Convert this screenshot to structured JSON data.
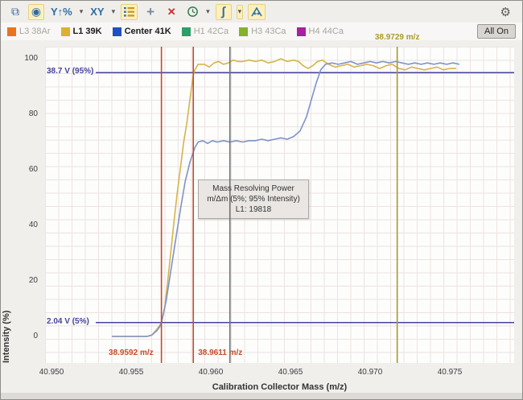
{
  "icons": {
    "copy": "⧉",
    "target": "◉",
    "caret": "▾",
    "crosshair": "+",
    "clear": "✕",
    "integral": "∫",
    "gear": "⚙"
  },
  "toolbar": {
    "y_scale_label": "Y↑%",
    "xy_label": "XY"
  },
  "legend": {
    "items": [
      {
        "label": "L3 38Ar",
        "color": "#e8741f",
        "active": false
      },
      {
        "label": "L1 39K",
        "color": "#ddb032",
        "active": true
      },
      {
        "label": "Center 41K",
        "color": "#2050c0",
        "active": true
      },
      {
        "label": "H1 42Ca",
        "color": "#2e9e68",
        "active": false
      },
      {
        "label": "H3 43Ca",
        "color": "#85b22c",
        "active": false
      },
      {
        "label": "H4 44Ca",
        "color": "#a8219e",
        "active": false
      }
    ],
    "all_on_label": "All On"
  },
  "tooltip": {
    "line1": "Mass Resolving Power",
    "line2": "m/Δm (5%; 95% Intensity)",
    "line3": "L1: 19818"
  },
  "chart_data": {
    "type": "line",
    "xlabel": "Calibration Collector Mass (m/z)",
    "ylabel": "Intensity (%)",
    "x_ticks": [
      40.95,
      40.955,
      40.96,
      40.965,
      40.97,
      40.975
    ],
    "y_ticks": [
      0,
      20,
      40,
      60,
      80,
      100
    ],
    "xlim": [
      40.9496,
      40.979
    ],
    "ylim": [
      -10,
      113
    ],
    "grid": true,
    "legend_position": "top",
    "series": [
      {
        "name": "L1 39K",
        "color": "#d6b34c",
        "points": [
          [
            40.9538,
            0
          ],
          [
            40.955,
            0
          ],
          [
            40.956,
            0
          ],
          [
            40.9563,
            0.5
          ],
          [
            40.9566,
            2.5
          ],
          [
            40.9568,
            4
          ],
          [
            40.9569,
            5
          ],
          [
            40.9571,
            10
          ],
          [
            40.9573,
            20
          ],
          [
            40.9575,
            31
          ],
          [
            40.9577,
            42
          ],
          [
            40.9579,
            52
          ],
          [
            40.9581,
            61
          ],
          [
            40.9583,
            70
          ],
          [
            40.9585,
            77
          ],
          [
            40.9587,
            86
          ],
          [
            40.9589,
            94
          ],
          [
            40.959,
            96
          ],
          [
            40.9592,
            98
          ],
          [
            40.9596,
            98
          ],
          [
            40.9599,
            97
          ],
          [
            40.9602,
            98.5
          ],
          [
            40.9605,
            99
          ],
          [
            40.9608,
            98
          ],
          [
            40.9611,
            98.5
          ],
          [
            40.9614,
            99.5
          ],
          [
            40.9617,
            99
          ],
          [
            40.962,
            99
          ],
          [
            40.9624,
            99.5
          ],
          [
            40.9628,
            99
          ],
          [
            40.9632,
            99.5
          ],
          [
            40.9636,
            98.5
          ],
          [
            40.964,
            99
          ],
          [
            40.9644,
            100
          ],
          [
            40.9648,
            99
          ],
          [
            40.9652,
            99.5
          ],
          [
            40.9655,
            99
          ],
          [
            40.9658,
            97.5
          ],
          [
            40.9661,
            96.5
          ],
          [
            40.9664,
            97.5
          ],
          [
            40.9667,
            99
          ],
          [
            40.967,
            99.5
          ],
          [
            40.9674,
            98
          ],
          [
            40.9678,
            97
          ],
          [
            40.9682,
            97.5
          ],
          [
            40.9686,
            98
          ],
          [
            40.969,
            97
          ],
          [
            40.9694,
            97.5
          ],
          [
            40.9698,
            98
          ],
          [
            40.9702,
            97.5
          ],
          [
            40.9706,
            96.5
          ],
          [
            40.971,
            97.5
          ],
          [
            40.9714,
            98
          ],
          [
            40.9718,
            96.5
          ],
          [
            40.9722,
            96
          ],
          [
            40.9726,
            97
          ],
          [
            40.973,
            96.5
          ],
          [
            40.9734,
            96
          ],
          [
            40.9738,
            96.5
          ],
          [
            40.9742,
            97
          ],
          [
            40.9746,
            96
          ],
          [
            40.975,
            96.5
          ],
          [
            40.9754,
            96.5
          ]
        ]
      },
      {
        "name": "Center 41K",
        "color": "#7d93c8",
        "points": [
          [
            40.9538,
            0
          ],
          [
            40.955,
            0
          ],
          [
            40.956,
            0
          ],
          [
            40.9563,
            0.5
          ],
          [
            40.9566,
            2
          ],
          [
            40.9568,
            3.5
          ],
          [
            40.9569,
            5
          ],
          [
            40.9572,
            13
          ],
          [
            40.9575,
            24
          ],
          [
            40.9578,
            35
          ],
          [
            40.9581,
            46
          ],
          [
            40.9584,
            56
          ],
          [
            40.9587,
            63
          ],
          [
            40.959,
            68
          ],
          [
            40.9592,
            70
          ],
          [
            40.9595,
            70.5
          ],
          [
            40.9598,
            69.5
          ],
          [
            40.9601,
            70.5
          ],
          [
            40.9604,
            70
          ],
          [
            40.9608,
            70.5
          ],
          [
            40.9612,
            70
          ],
          [
            40.9616,
            70.5
          ],
          [
            40.962,
            70
          ],
          [
            40.9624,
            70.5
          ],
          [
            40.9628,
            70.5
          ],
          [
            40.9632,
            71
          ],
          [
            40.9636,
            70.5
          ],
          [
            40.964,
            71
          ],
          [
            40.9644,
            71.5
          ],
          [
            40.9648,
            71
          ],
          [
            40.9652,
            72
          ],
          [
            40.9656,
            74
          ],
          [
            40.966,
            79
          ],
          [
            40.9663,
            85
          ],
          [
            40.9666,
            91
          ],
          [
            40.9669,
            96
          ],
          [
            40.9672,
            98
          ],
          [
            40.9676,
            98.5
          ],
          [
            40.968,
            98
          ],
          [
            40.9684,
            98.5
          ],
          [
            40.9688,
            99
          ],
          [
            40.9692,
            98
          ],
          [
            40.9696,
            98.5
          ],
          [
            40.97,
            99
          ],
          [
            40.9704,
            98.5
          ],
          [
            40.9708,
            99
          ],
          [
            40.9712,
            98.5
          ],
          [
            40.9716,
            99
          ],
          [
            40.972,
            98.5
          ],
          [
            40.9724,
            98
          ],
          [
            40.9728,
            98.5
          ],
          [
            40.9732,
            98
          ],
          [
            40.9736,
            98.5
          ],
          [
            40.974,
            98
          ],
          [
            40.9744,
            98.5
          ],
          [
            40.9748,
            98
          ],
          [
            40.9752,
            98.5
          ],
          [
            40.9756,
            98
          ]
        ]
      }
    ],
    "markers": {
      "vlines": [
        {
          "mz": 40.9569,
          "color": "#c64a2a",
          "label": "38.9592 m/z",
          "label_pos": "bottom-left"
        },
        {
          "mz": 40.9589,
          "color": "#c64a2a",
          "label": "38.9611 m/z",
          "label_pos": "bottom-right"
        },
        {
          "mz": 40.9612,
          "color": "#707070",
          "label": "",
          "label_pos": "none"
        },
        {
          "mz": 40.9717,
          "color": "#a89a2b",
          "label": "38.9729 m/z",
          "label_pos": "top"
        }
      ],
      "hlines": [
        {
          "pct": 95,
          "color": "#45449e",
          "label": "38.7 V (95%)"
        },
        {
          "pct": 5,
          "color": "#45449e",
          "label": "2.04 V (5%)"
        }
      ]
    }
  }
}
